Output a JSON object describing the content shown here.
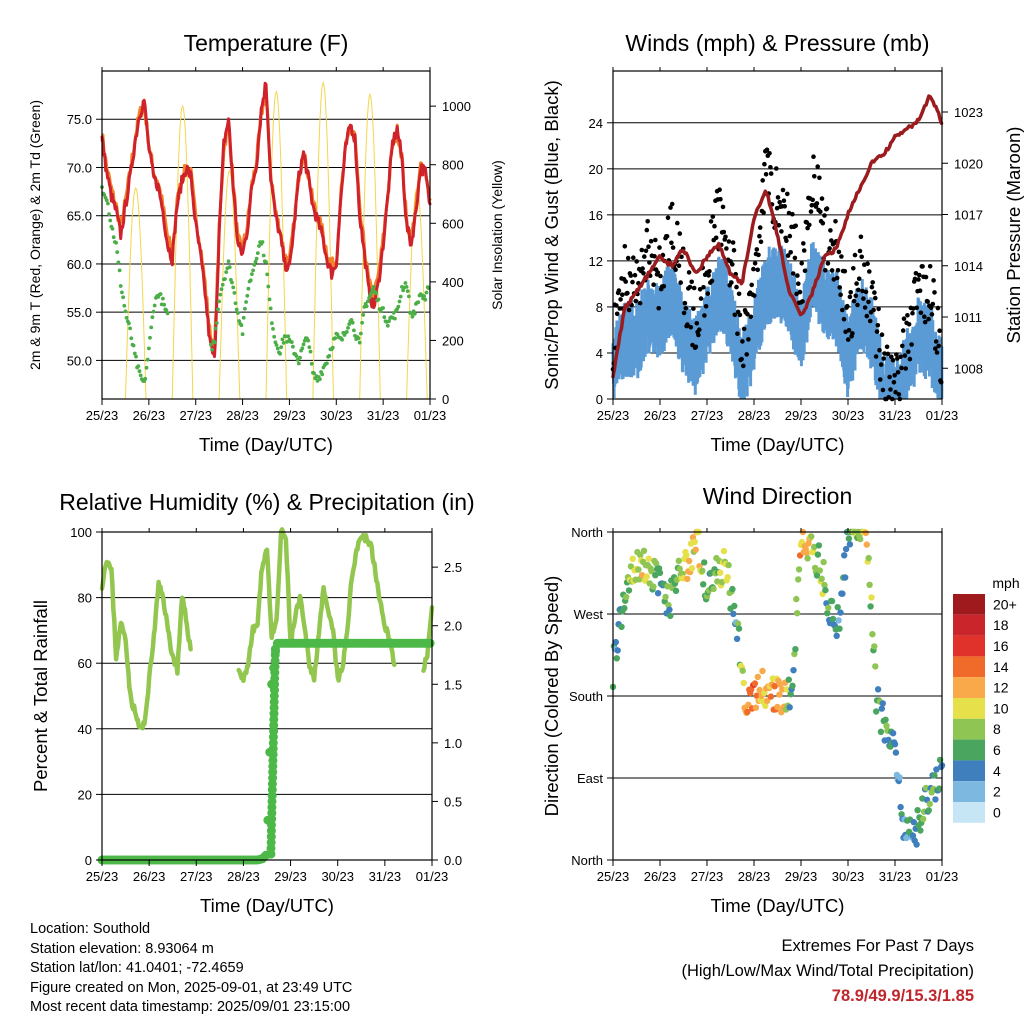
{
  "time_ticks": [
    "25/23",
    "26/23",
    "27/23",
    "28/23",
    "29/23",
    "30/23",
    "31/23",
    "01/23"
  ],
  "time_xlabel": "Time (Day/UTC)",
  "colors": {
    "t2m": "#d0222a",
    "t9m": "#f3822a",
    "td": "#4bae47",
    "solar": "#f4d64b",
    "wind": "#5b9bd5",
    "gust": "#000000",
    "pressure": "#9b1c1f",
    "rh": "#92c64e",
    "precip": "#4cb848",
    "extremes": "#c0272d"
  },
  "info": {
    "location": "Location: Southold",
    "elevation": "Station elevation: 8.93064 m",
    "latlon": "Station lat/lon: 41.0401; -72.4659",
    "created": "Figure created on Mon, 2025-09-01, at 23:49 UTC",
    "recent": "Most recent data timestamp: 2025/09/01 23:15:00"
  },
  "extremes": {
    "line1": "Extremes For Past 7 Days",
    "line2": "(High/Low/Max Wind/Total Precipitation)",
    "values": "78.9/49.9/15.3/1.85"
  },
  "chart_data": [
    {
      "type": "line",
      "title": "Temperature (F)",
      "xlabel": "Time (Day/UTC)",
      "ylabel": "2m & 9m T (Red, Orange) & 2m Td (Green)",
      "y2label": "Solar Insolation (Yellow)",
      "ylim": [
        46,
        80
      ],
      "y2lim": [
        0,
        1120
      ],
      "yticks": [
        50,
        55,
        60,
        65,
        70,
        75
      ],
      "y2ticks": [
        0,
        200,
        400,
        600,
        800,
        1000
      ],
      "x_days": [
        0,
        0.1,
        0.2,
        0.3,
        0.4,
        0.5,
        0.6,
        0.7,
        0.8,
        0.9,
        1.0,
        1.1,
        1.2,
        1.3,
        1.4,
        1.5,
        1.6,
        1.7,
        1.8,
        1.9,
        2.0,
        2.1,
        2.2,
        2.3,
        2.4,
        2.5,
        2.6,
        2.7,
        2.8,
        2.9,
        3.0,
        3.1,
        3.2,
        3.3,
        3.4,
        3.5,
        3.6,
        3.7,
        3.8,
        3.9,
        4.0,
        4.1,
        4.2,
        4.3,
        4.4,
        4.5,
        4.6,
        4.7,
        4.8,
        4.9,
        5.0,
        5.1,
        5.2,
        5.3,
        5.4,
        5.5,
        5.6,
        5.7,
        5.8,
        5.9,
        6.0,
        6.1,
        6.2,
        6.3,
        6.4,
        6.5,
        6.6,
        6.7,
        6.8,
        6.9,
        7.0
      ],
      "series": [
        {
          "name": "2m T",
          "values": [
            73.0,
            69.5,
            67.0,
            65.5,
            63.0,
            66.0,
            69.0,
            72.5,
            75.5,
            77.0,
            72.0,
            69.0,
            68.0,
            65.5,
            62.0,
            60.5,
            66.0,
            68.5,
            70.0,
            69.0,
            64.0,
            61.0,
            57.0,
            52.0,
            50.0,
            63.0,
            72.5,
            75.0,
            68.0,
            62.0,
            61.0,
            63.5,
            68.0,
            70.5,
            76.0,
            78.9,
            69.0,
            65.0,
            63.0,
            60.0,
            59.5,
            64.0,
            69.0,
            71.5,
            69.0,
            66.0,
            64.5,
            63.0,
            60.5,
            59.0,
            60.0,
            67.0,
            72.0,
            74.5,
            73.0,
            65.0,
            61.0,
            57.0,
            55.5,
            58.0,
            62.0,
            67.0,
            72.5,
            74.0,
            71.0,
            64.0,
            62.0,
            65.5,
            70.0,
            69.5,
            66.0
          ]
        },
        {
          "name": "9m T",
          "values": [
            73.5,
            70.0,
            67.8,
            66.0,
            63.8,
            66.5,
            69.5,
            73.0,
            75.5,
            76.5,
            72.5,
            69.5,
            68.5,
            66.0,
            62.8,
            61.2,
            66.3,
            68.8,
            70.0,
            69.3,
            64.8,
            62.0,
            58.0,
            53.0,
            51.0,
            63.5,
            72.0,
            74.5,
            68.5,
            62.5,
            61.5,
            64.0,
            68.3,
            70.8,
            75.5,
            78.0,
            69.5,
            65.5,
            63.5,
            60.8,
            60.2,
            64.3,
            69.2,
            71.5,
            69.3,
            66.5,
            65.0,
            63.5,
            61.2,
            59.8,
            60.5,
            67.2,
            72.0,
            74.2,
            73.2,
            65.5,
            61.8,
            58.0,
            56.5,
            58.8,
            62.6,
            67.3,
            72.3,
            73.8,
            71.2,
            64.5,
            62.6,
            65.8,
            70.2,
            69.8,
            66.5
          ]
        },
        {
          "name": "2m Td",
          "values": [
            68.0,
            67.0,
            64.0,
            62.0,
            58.0,
            55.0,
            53.0,
            50.5,
            48.5,
            47.5,
            51.0,
            55.5,
            57.0,
            56.0,
            54.5,
            null,
            null,
            null,
            null,
            null,
            null,
            null,
            null,
            51.0,
            52.0,
            56.5,
            58.5,
            60.0,
            57.5,
            55.0,
            53.0,
            57.0,
            59.0,
            61.0,
            62.5,
            60.0,
            55.0,
            52.0,
            51.0,
            52.5,
            52.0,
            51.0,
            50.0,
            51.5,
            52.5,
            48.5,
            48.0,
            49.0,
            50.0,
            51.5,
            52.5,
            52.0,
            53.0,
            54.5,
            53.0,
            51.5,
            55.5,
            56.5,
            57.5,
            56.0,
            55.0,
            54.0,
            54.5,
            55.0,
            57.5,
            58.0,
            54.5,
            55.5,
            57.0,
            56.0,
            58.5
          ]
        },
        {
          "name": "Solar",
          "axis": "y2",
          "days": [
            0,
            1,
            2,
            3,
            4,
            5,
            6
          ],
          "peak_values": [
            720,
            1000,
            780,
            1050,
            1080,
            1040,
            720
          ]
        }
      ]
    },
    {
      "type": "line",
      "title": "Winds (mph) & Pressure (mb)",
      "xlabel": "Time (Day/UTC)",
      "ylabel": "Sonic/Prop Wind & Gust (Blue, Black)",
      "y2label": "Station Pressure (Maroon)",
      "ylim": [
        0,
        28.5
      ],
      "y2lim": [
        1006.2,
        1025.4
      ],
      "yticks": [
        0,
        4,
        8,
        12,
        16,
        20,
        24
      ],
      "y2ticks": [
        1008,
        1011,
        1014,
        1017,
        1020,
        1023
      ],
      "x_days": [
        0,
        0.25,
        0.5,
        0.75,
        1.0,
        1.25,
        1.5,
        1.75,
        2.0,
        2.25,
        2.5,
        2.75,
        3.0,
        3.25,
        3.5,
        3.75,
        4.0,
        4.25,
        4.5,
        4.75,
        5.0,
        5.25,
        5.5,
        5.75,
        6.0,
        6.25,
        6.5,
        6.75,
        7.0
      ],
      "series": [
        {
          "name": "Wind",
          "values": [
            3.5,
            6.0,
            5.5,
            8.0,
            7.0,
            9.5,
            6.0,
            4.0,
            7.0,
            10.0,
            8.0,
            2.5,
            6.0,
            10.0,
            11.0,
            9.5,
            6.0,
            11.5,
            9.0,
            8.5,
            4.0,
            8.0,
            6.0,
            1.5,
            0.5,
            3.0,
            6.0,
            5.5,
            2.0
          ]
        },
        {
          "name": "Gust",
          "values": [
            5.0,
            11.0,
            9.5,
            13.0,
            10.5,
            15.0,
            10.0,
            6.5,
            11.0,
            16.0,
            12.5,
            4.0,
            10.0,
            20.0,
            17.0,
            15.0,
            10.0,
            20.0,
            14.0,
            13.0,
            6.5,
            12.0,
            9.0,
            3.0,
            1.0,
            5.0,
            10.0,
            9.0,
            3.5
          ]
        },
        {
          "name": "Pressure",
          "axis": "y2",
          "values": [
            1007.6,
            1011.5,
            1012.5,
            1013.5,
            1014.5,
            1014.0,
            1015.0,
            1013.5,
            1014.5,
            1015.3,
            1013.5,
            1013.0,
            1016.8,
            1018.5,
            1015.8,
            1012.5,
            1011.0,
            1012.5,
            1014.5,
            1015.0,
            1017.0,
            1018.5,
            1020.0,
            1020.5,
            1021.5,
            1022.0,
            1022.5,
            1024.0,
            1022.4
          ]
        }
      ]
    },
    {
      "type": "line",
      "title": "Relative Humidity (%) & Precipitation (in)",
      "xlabel": "Time (Day/UTC)",
      "ylabel": "Percent & Total Rainfall",
      "ylim": [
        0,
        100
      ],
      "y2lim": [
        0,
        2.8
      ],
      "yticks": [
        0,
        20,
        40,
        60,
        80,
        100
      ],
      "y2ticks": [
        0.0,
        0.5,
        1.0,
        1.5,
        2.0,
        2.5
      ],
      "y2ticklabels": [
        "0.0",
        "0.5",
        "1.0",
        "1.5",
        "2.0",
        "2.5"
      ],
      "x_days": [
        0,
        0.1,
        0.2,
        0.3,
        0.4,
        0.5,
        0.6,
        0.7,
        0.8,
        0.9,
        1.0,
        1.1,
        1.2,
        1.3,
        1.4,
        1.5,
        1.6,
        1.7,
        1.8,
        1.9,
        2.0,
        2.1,
        2.2,
        2.3,
        2.4,
        2.5,
        2.6,
        2.7,
        2.8,
        2.9,
        3.0,
        3.1,
        3.2,
        3.3,
        3.4,
        3.5,
        3.6,
        3.7,
        3.8,
        3.9,
        4.0,
        4.1,
        4.2,
        4.3,
        4.4,
        4.5,
        4.6,
        4.7,
        4.8,
        4.9,
        5.0,
        5.1,
        5.2,
        5.3,
        5.4,
        5.5,
        5.6,
        5.7,
        5.8,
        5.9,
        6.0,
        6.1,
        6.2,
        6.3,
        6.4,
        6.5,
        6.6,
        6.7,
        6.8,
        6.9,
        7.0
      ],
      "series": [
        {
          "name": "RH",
          "values": [
            84,
            92,
            88,
            62,
            72,
            68,
            50,
            45,
            40,
            41,
            55,
            68,
            84,
            80,
            70,
            62,
            58,
            80,
            72,
            62,
            null,
            null,
            null,
            null,
            null,
            null,
            null,
            null,
            null,
            58,
            55,
            60,
            70,
            72,
            90,
            95,
            68,
            72,
            100,
            98,
            66,
            74,
            80,
            70,
            60,
            55,
            70,
            82,
            75,
            70,
            55,
            58,
            70,
            86,
            95,
            99,
            98,
            96,
            88,
            78,
            72,
            67,
            60,
            null,
            null,
            null,
            null,
            null,
            58,
            62,
            76
          ]
        },
        {
          "name": "Precip",
          "axis": "y2",
          "values": [
            0,
            0,
            0,
            0,
            0,
            0,
            0,
            0,
            0,
            0,
            0,
            0,
            0,
            0,
            0,
            0,
            0,
            0,
            0,
            0,
            0,
            0,
            0,
            0,
            0,
            0,
            0,
            0,
            0,
            0,
            0,
            0,
            0,
            0,
            0.01,
            0.05,
            1.5,
            1.85,
            1.85,
            1.85,
            1.85,
            1.85,
            1.85,
            1.85,
            1.85,
            1.85,
            1.85,
            1.85,
            1.85,
            1.85,
            1.85,
            1.85,
            1.85,
            1.85,
            1.85,
            1.85,
            1.85,
            1.85,
            1.85,
            1.85,
            1.85,
            1.85,
            1.85,
            1.85,
            1.85,
            1.85,
            1.85,
            1.85,
            1.85,
            1.85,
            1.85
          ]
        }
      ]
    },
    {
      "type": "scatter",
      "title": "Wind Direction",
      "xlabel": "Time (Day/UTC)",
      "ylabel": "Direction (Colored By Speed)",
      "ylim": [
        0,
        360
      ],
      "yticks": [
        0,
        90,
        180,
        270,
        360
      ],
      "yticklabels": [
        "North",
        "East",
        "South",
        "West",
        "North"
      ],
      "legend": {
        "title": "mph",
        "labels": [
          "20+",
          "18",
          "16",
          "14",
          "12",
          "10",
          "8",
          "6",
          "4",
          "2",
          "0"
        ],
        "colors": [
          "#9e1a1d",
          "#c9252b",
          "#e0322a",
          "#f06a2a",
          "#f9a94a",
          "#e6e04a",
          "#8fc553",
          "#4aa55f",
          "#3f7fbd",
          "#7db8e0",
          "#c6e5f5"
        ]
      },
      "x_days": [
        0.0,
        0.2,
        0.4,
        0.6,
        0.8,
        1.0,
        1.2,
        1.4,
        1.6,
        1.8,
        2.0,
        2.2,
        2.4,
        2.6,
        2.8,
        3.0,
        3.2,
        3.4,
        3.6,
        3.8,
        4.0,
        4.2,
        4.4,
        4.6,
        4.8,
        5.0,
        5.2,
        5.4,
        5.6,
        5.8,
        6.0,
        6.2,
        6.4,
        6.6,
        6.8,
        7.0
      ],
      "direction": [
        210,
        275,
        320,
        330,
        315,
        300,
        280,
        315,
        330,
        350,
        290,
        320,
        320,
        270,
        180,
        182,
        190,
        185,
        180,
        180,
        355,
        340,
        325,
        280,
        260,
        360,
        360,
        360,
        180,
        140,
        120,
        30,
        25,
        60,
        80,
        100
      ],
      "speed": [
        4,
        6,
        8,
        10,
        8,
        6,
        6,
        8,
        12,
        10,
        6,
        8,
        10,
        4,
        12,
        14,
        10,
        12,
        12,
        4,
        12,
        10,
        8,
        6,
        4,
        6,
        8,
        10,
        6,
        6,
        4,
        4,
        4,
        6,
        6,
        4
      ]
    }
  ]
}
